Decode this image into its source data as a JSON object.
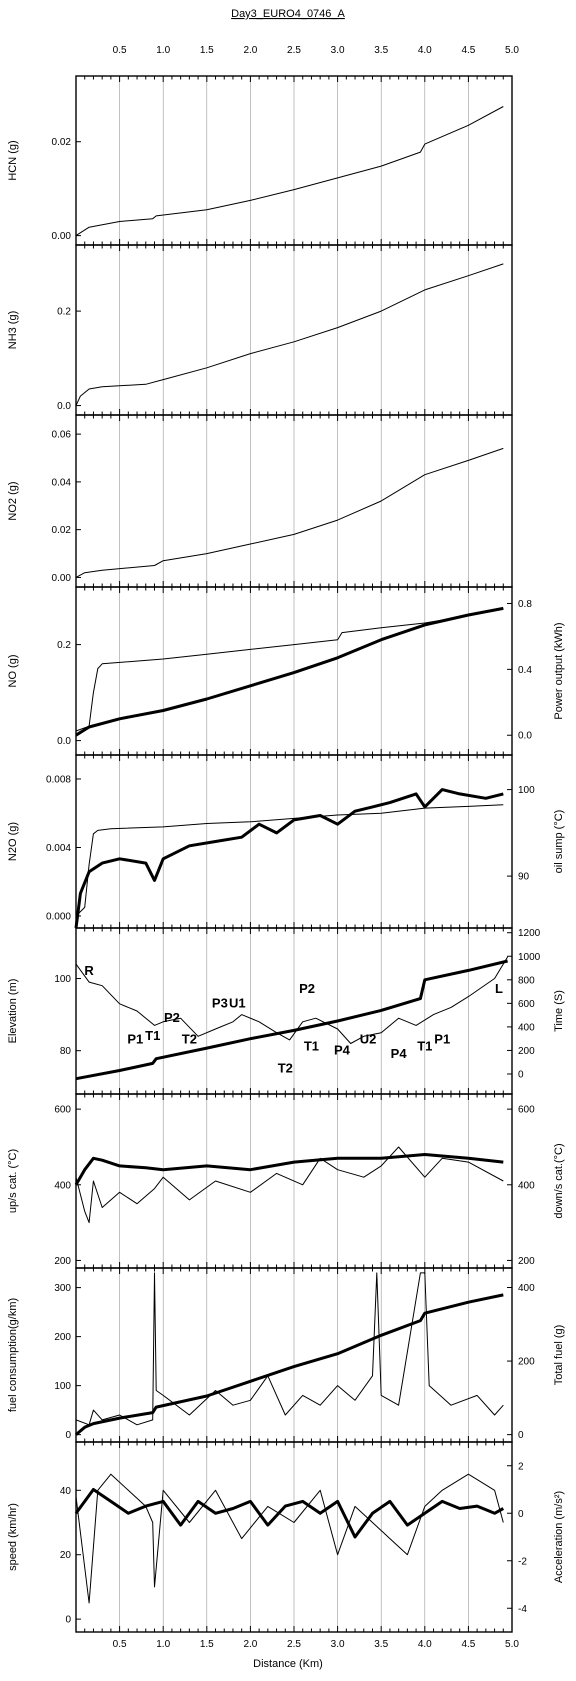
{
  "title": "Day3_EURO4_0746_A",
  "chart_data": {
    "type": "line",
    "title": "Day3_EURO4_0746_A",
    "xlabel": "Distance (Km)",
    "xlim": [
      0,
      5.0
    ],
    "xticks": [
      "0.5",
      "1.0",
      "1.5",
      "2.0",
      "2.5",
      "3.0",
      "3.5",
      "4.0",
      "4.5",
      "5.0"
    ],
    "grid": "vertical",
    "panels": [
      {
        "ylabel_left": "HCN (g)",
        "ylim": [
          -0.002,
          0.034
        ],
        "yticks_left": [
          "0.00",
          "0.02"
        ],
        "series": [
          {
            "axis": "left",
            "style": "thin",
            "x": [
              0,
              0.15,
              0.5,
              0.88,
              0.92,
              1.5,
              2.0,
              2.5,
              3.0,
              3.5,
              3.95,
              4.0,
              4.5,
              4.9
            ],
            "y": [
              0.0,
              0.0018,
              0.003,
              0.0036,
              0.0042,
              0.0055,
              0.0075,
              0.0098,
              0.0123,
              0.0148,
              0.0178,
              0.0195,
              0.0235,
              0.0275
            ]
          }
        ]
      },
      {
        "ylabel_left": "NH3 (g)",
        "ylim": [
          -0.02,
          0.34
        ],
        "yticks_left": [
          "0.0",
          "0.2"
        ],
        "series": [
          {
            "axis": "left",
            "style": "thin",
            "x": [
              0,
              0.05,
              0.15,
              0.3,
              0.8,
              1.0,
              1.5,
              2.0,
              2.5,
              3.0,
              3.5,
              4.0,
              4.5,
              4.9
            ],
            "y": [
              0.0,
              0.02,
              0.035,
              0.04,
              0.045,
              0.055,
              0.08,
              0.11,
              0.135,
              0.165,
              0.2,
              0.245,
              0.275,
              0.3
            ]
          }
        ]
      },
      {
        "ylabel_left": "NO2 (g)",
        "ylim": [
          -0.004,
          0.068
        ],
        "yticks_left": [
          "0.00",
          "0.02",
          "0.04",
          "0.06"
        ],
        "series": [
          {
            "axis": "left",
            "style": "thin",
            "x": [
              0,
              0.1,
              0.3,
              0.9,
              1.0,
              1.5,
              2.0,
              2.5,
              3.0,
              3.5,
              4.0,
              4.5,
              4.9
            ],
            "y": [
              0.0,
              0.002,
              0.003,
              0.005,
              0.007,
              0.01,
              0.014,
              0.018,
              0.024,
              0.032,
              0.043,
              0.049,
              0.054
            ]
          }
        ]
      },
      {
        "ylabel_left": "NO (g)",
        "ylabel_right": "Power output (kWh)",
        "ylim": [
          -0.03,
          0.32
        ],
        "ylim_right": [
          -0.12,
          0.9
        ],
        "yticks_left": [
          "0.0",
          "0.2"
        ],
        "yticks_right": [
          "0.0",
          "0.4",
          "0.8"
        ],
        "series": [
          {
            "axis": "left",
            "style": "thin",
            "x": [
              0,
              0.15,
              0.2,
              0.25,
              0.3,
              1.0,
              1.5,
              2.0,
              2.5,
              3.0,
              3.05,
              3.5,
              4.0,
              4.5,
              4.9
            ],
            "y": [
              0.02,
              0.03,
              0.1,
              0.15,
              0.16,
              0.17,
              0.18,
              0.19,
              0.2,
              0.21,
              0.225,
              0.235,
              0.245,
              0.26,
              0.275
            ]
          },
          {
            "axis": "right",
            "style": "thick",
            "x": [
              0,
              0.15,
              0.5,
              1.0,
              1.5,
              2.0,
              2.5,
              3.0,
              3.5,
              4.0,
              4.5,
              4.9
            ],
            "y": [
              0.0,
              0.05,
              0.1,
              0.15,
              0.22,
              0.3,
              0.38,
              0.47,
              0.58,
              0.67,
              0.73,
              0.77
            ]
          }
        ]
      },
      {
        "ylabel_left": "N2O (g)",
        "ylabel_right": "oil sump (°C)",
        "ylim": [
          -0.0007,
          0.0094
        ],
        "ylim_right": [
          84,
          104
        ],
        "yticks_left": [
          "0.000",
          "0.004",
          "0.008"
        ],
        "yticks_right": [
          "90",
          "100"
        ],
        "series": [
          {
            "axis": "left",
            "style": "thin",
            "x": [
              0,
              0.1,
              0.15,
              0.2,
              0.25,
              0.4,
              1.0,
              1.5,
              2.0,
              2.5,
              3.0,
              3.5,
              4.0,
              4.5,
              4.9
            ],
            "y": [
              0.0,
              0.0005,
              0.003,
              0.0048,
              0.005,
              0.0051,
              0.0052,
              0.0054,
              0.0055,
              0.0057,
              0.0059,
              0.006,
              0.0063,
              0.0064,
              0.0065
            ]
          },
          {
            "axis": "right",
            "style": "thick",
            "x": [
              0,
              0.05,
              0.15,
              0.3,
              0.5,
              0.8,
              0.9,
              1.0,
              1.3,
              1.6,
              1.9,
              2.1,
              2.3,
              2.5,
              2.8,
              3.0,
              3.2,
              3.4,
              3.6,
              3.9,
              4.0,
              4.2,
              4.4,
              4.7,
              4.9
            ],
            "y": [
              84,
              88,
              90.5,
              91.5,
              92,
              91.5,
              89.5,
              92,
              93.5,
              94,
              94.5,
              96,
              95,
              96.5,
              97,
              96,
              97.5,
              98,
              98.5,
              99.5,
              98,
              100,
              99.5,
              99,
              99.5
            ]
          }
        ]
      },
      {
        "ylabel_left": "Elevation (m)",
        "ylabel_right": "Time (S)",
        "ylim": [
          68,
          114
        ],
        "ylim_right": [
          -170,
          1240
        ],
        "yticks_left": [
          "80",
          "100"
        ],
        "yticks_right": [
          "0",
          "200",
          "400",
          "600",
          "800",
          "1000",
          "1200"
        ],
        "annotations": [
          "R",
          "P1",
          "T1",
          "P2",
          "T2",
          "P3",
          "U1",
          "T2",
          "P2",
          "T1",
          "P4",
          "U2",
          "P4",
          "T1",
          "P1",
          "L"
        ],
        "series": [
          {
            "axis": "left",
            "style": "thin",
            "x": [
              0,
              0.15,
              0.3,
              0.5,
              0.7,
              0.9,
              1.0,
              1.2,
              1.4,
              1.6,
              1.8,
              1.9,
              2.1,
              2.3,
              2.45,
              2.6,
              2.75,
              3.0,
              3.15,
              3.3,
              3.5,
              3.7,
              3.9,
              4.1,
              4.3,
              4.5,
              4.8,
              4.95
            ],
            "y": [
              104,
              99,
              98,
              93,
              91,
              87,
              88,
              89,
              84,
              86,
              88,
              90,
              88,
              85,
              83,
              88,
              89,
              86,
              82,
              84,
              85,
              89,
              87,
              90,
              92,
              95,
              100,
              106
            ]
          },
          {
            "axis": "right",
            "style": "thick",
            "x": [
              0,
              0.5,
              0.88,
              0.92,
              1.5,
              2.0,
              2.5,
              3.0,
              3.5,
              3.95,
              4.0,
              4.5,
              4.95
            ],
            "y": [
              -40,
              30,
              90,
              130,
              220,
              300,
              370,
              450,
              540,
              640,
              800,
              880,
              960
            ]
          }
        ]
      },
      {
        "ylabel_left": "up/s cat. (°C)",
        "ylabel_right": "down/s cat.(°C)",
        "ylim": [
          180,
          640
        ],
        "ylim_right": [
          180,
          640
        ],
        "yticks_left": [
          "200",
          "400",
          "600"
        ],
        "yticks_right": [
          "200",
          "400",
          "600"
        ],
        "series": [
          {
            "axis": "left",
            "style": "thin",
            "x": [
              0,
              0.1,
              0.15,
              0.2,
              0.3,
              0.5,
              0.7,
              0.9,
              1.0,
              1.3,
              1.6,
              2.0,
              2.3,
              2.6,
              2.8,
              3.0,
              3.3,
              3.5,
              3.7,
              4.0,
              4.2,
              4.5,
              4.9
            ],
            "y": [
              420,
              330,
              300,
              410,
              340,
              380,
              350,
              390,
              420,
              360,
              410,
              380,
              430,
              400,
              470,
              440,
              420,
              450,
              500,
              420,
              470,
              460,
              410
            ]
          },
          {
            "axis": "right",
            "style": "thick",
            "x": [
              0,
              0.1,
              0.2,
              0.3,
              0.5,
              0.8,
              1.0,
              1.5,
              2.0,
              2.5,
              3.0,
              3.5,
              4.0,
              4.5,
              4.9
            ],
            "y": [
              400,
              440,
              470,
              465,
              450,
              445,
              440,
              450,
              440,
              460,
              470,
              470,
              480,
              470,
              460
            ]
          }
        ]
      },
      {
        "ylabel_left": "fuel consumption(g/km)",
        "ylabel_right": "Total fuel (g)",
        "ylim": [
          -15,
          340
        ],
        "ylim_right": [
          -20,
          453
        ],
        "yticks_left": [
          "0",
          "100",
          "200",
          "300"
        ],
        "yticks_right": [
          "0",
          "200",
          "400"
        ],
        "series": [
          {
            "axis": "left",
            "style": "thin",
            "x": [
              0,
              0.15,
              0.2,
              0.3,
              0.5,
              0.7,
              0.88,
              0.9,
              0.92,
              1.0,
              1.3,
              1.6,
              1.8,
              2.0,
              2.2,
              2.4,
              2.6,
              2.8,
              3.0,
              3.2,
              3.4,
              3.45,
              3.5,
              3.7,
              3.95,
              4.0,
              4.05,
              4.3,
              4.6,
              4.8,
              4.9
            ],
            "y": [
              30,
              20,
              50,
              30,
              40,
              20,
              30,
              330,
              90,
              80,
              40,
              90,
              60,
              70,
              120,
              40,
              80,
              60,
              100,
              70,
              120,
              330,
              80,
              60,
              330,
              330,
              100,
              60,
              80,
              40,
              60
            ]
          },
          {
            "axis": "right",
            "style": "thick",
            "x": [
              0,
              0.1,
              0.2,
              0.5,
              0.88,
              0.92,
              1.5,
              2.0,
              2.5,
              3.0,
              3.5,
              3.95,
              4.0,
              4.5,
              4.9
            ],
            "y": [
              0,
              20,
              30,
              45,
              60,
              75,
              105,
              145,
              185,
              220,
              270,
              310,
              330,
              360,
              380
            ]
          }
        ]
      },
      {
        "ylabel_left": "speed (km/hr)",
        "ylabel_right": "Acceleration (m/s²)",
        "ylim": [
          -4,
          55
        ],
        "ylim_right": [
          -5,
          3
        ],
        "yticks_left": [
          "0",
          "20",
          "40"
        ],
        "yticks_right": [
          "-4",
          "-2",
          "0",
          "2"
        ],
        "series": [
          {
            "axis": "left",
            "style": "thin",
            "x": [
              0,
              0.15,
              0.25,
              0.4,
              0.6,
              0.8,
              0.88,
              0.9,
              1.0,
              1.3,
              1.6,
              1.9,
              2.2,
              2.5,
              2.8,
              3.0,
              3.2,
              3.4,
              3.6,
              3.8,
              4.0,
              4.2,
              4.5,
              4.8,
              4.9
            ],
            "y": [
              38,
              5,
              40,
              45,
              40,
              35,
              30,
              10,
              40,
              30,
              40,
              25,
              35,
              30,
              40,
              20,
              35,
              30,
              25,
              20,
              35,
              40,
              45,
              40,
              30
            ]
          },
          {
            "axis": "right",
            "style": "thick",
            "x": [
              0,
              0.2,
              0.4,
              0.6,
              0.8,
              1.0,
              1.2,
              1.4,
              1.6,
              1.8,
              2.0,
              2.2,
              2.4,
              2.6,
              2.8,
              3.0,
              3.2,
              3.4,
              3.6,
              3.8,
              4.0,
              4.2,
              4.4,
              4.6,
              4.8,
              4.9
            ],
            "y": [
              0,
              1,
              0.5,
              0,
              0.3,
              0.5,
              -0.5,
              0.5,
              0,
              0.2,
              0.5,
              -0.5,
              0.3,
              0.5,
              0,
              0.5,
              -1,
              0,
              0.5,
              -0.5,
              0,
              0.5,
              0.2,
              0.3,
              0,
              0.2
            ]
          }
        ]
      }
    ]
  }
}
